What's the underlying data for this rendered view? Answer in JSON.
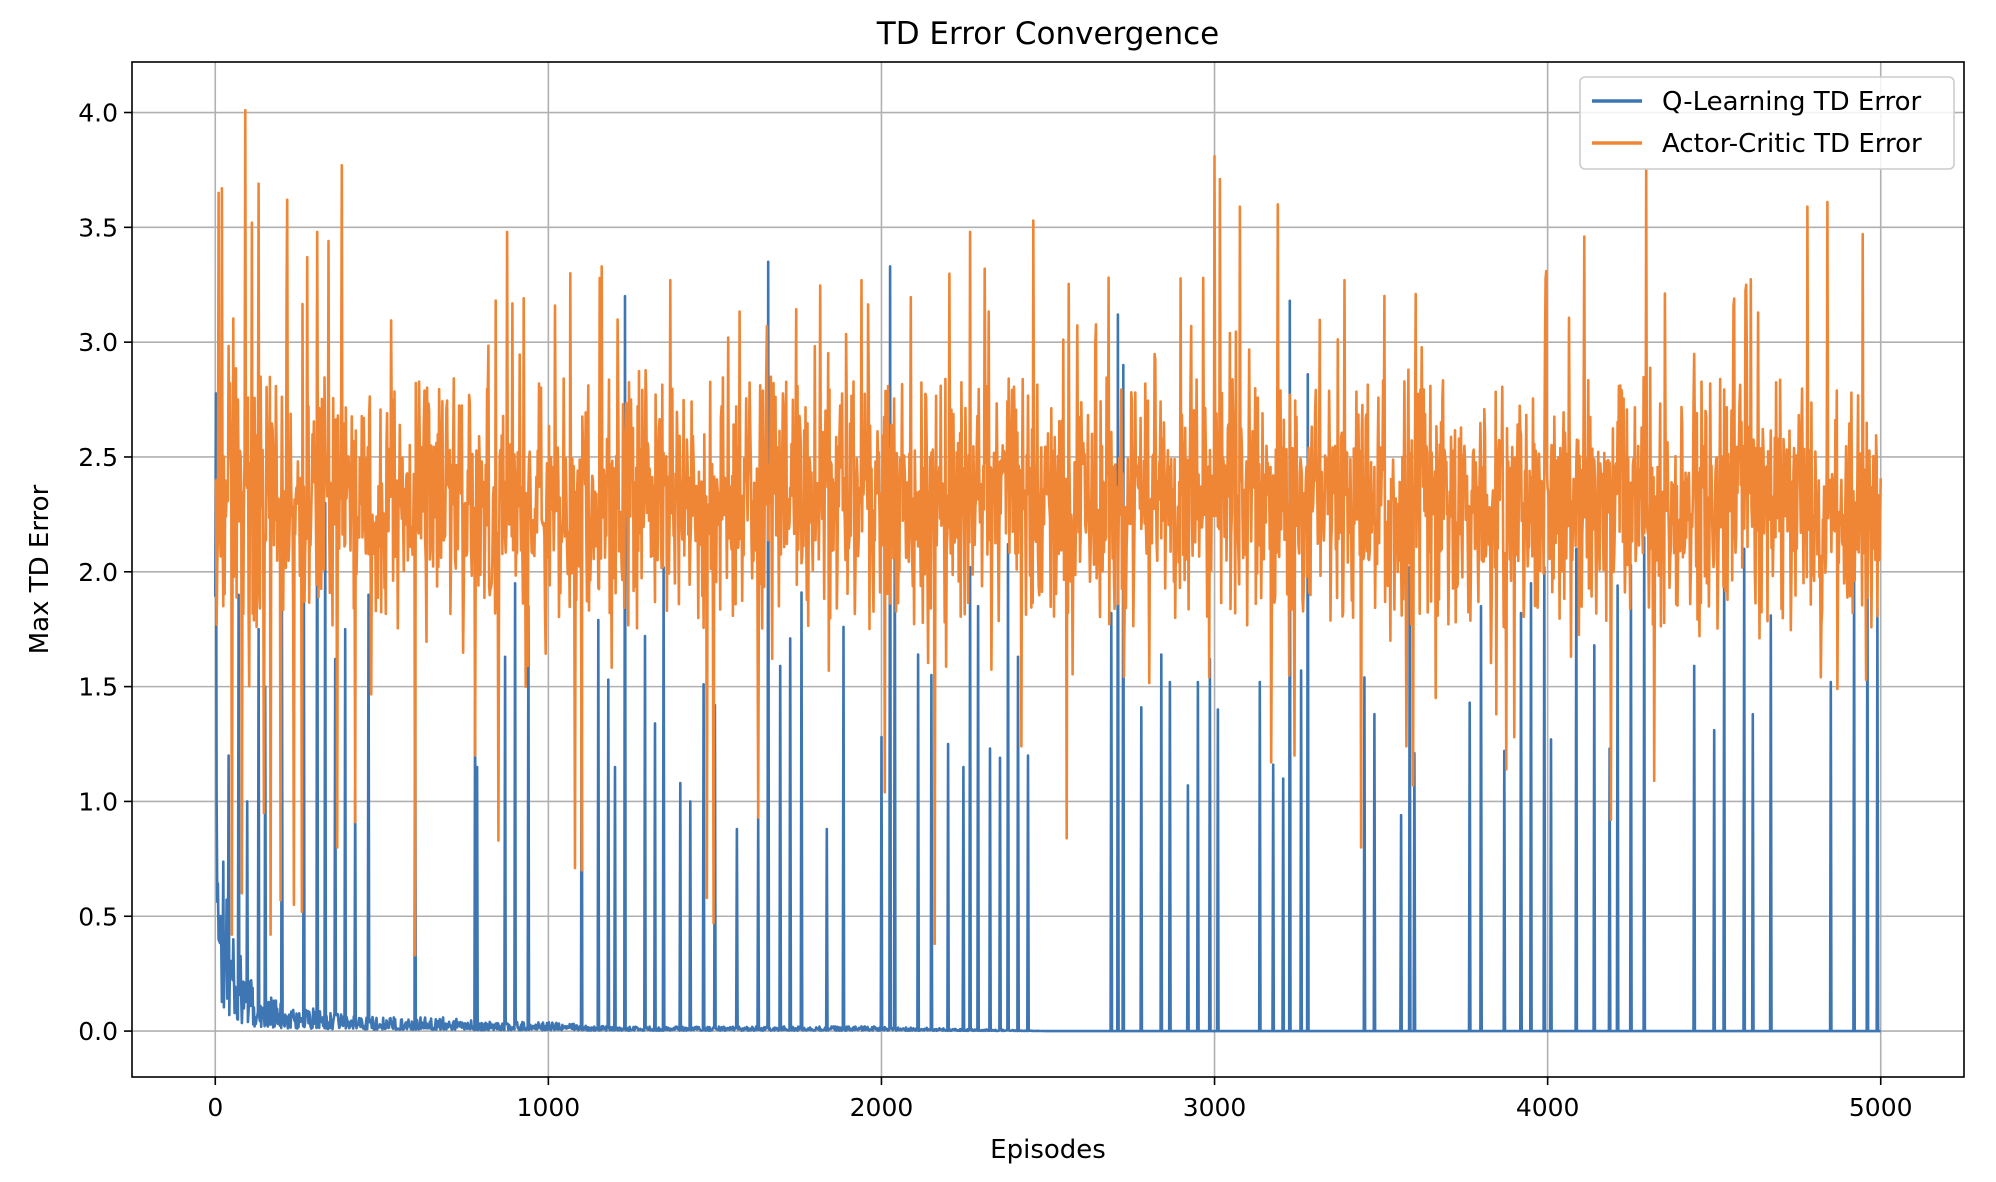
{
  "chart_data": {
    "type": "line",
    "title": "TD Error Convergence",
    "xlabel": "Episodes",
    "ylabel": "Max TD Error",
    "xlim": [
      -250,
      5250
    ],
    "ylim": [
      -0.2,
      4.22
    ],
    "xticks": [
      0,
      1000,
      2000,
      3000,
      4000,
      5000
    ],
    "xtick_labels": [
      "0",
      "1000",
      "2000",
      "3000",
      "4000",
      "5000"
    ],
    "yticks": [
      0.0,
      0.5,
      1.0,
      1.5,
      2.0,
      2.5,
      3.0,
      3.5,
      4.0
    ],
    "ytick_labels": [
      "0.0",
      "0.5",
      "1.0",
      "1.5",
      "2.0",
      "2.5",
      "3.0",
      "3.5",
      "4.0"
    ],
    "grid": true,
    "legend_position": "top-right",
    "series": [
      {
        "name": "Q-Learning TD Error",
        "color": "#3d76b3",
        "x": [
          0,
          5,
          10,
          20,
          30,
          50,
          80,
          120,
          160,
          200,
          250,
          300,
          350,
          400,
          500,
          600,
          700,
          800,
          1000,
          1200,
          1500,
          2000,
          2500,
          3000,
          3500,
          4000,
          4500,
          5000
        ],
        "values": [
          2.2,
          0.7,
          0.5,
          0.45,
          0.35,
          0.25,
          0.15,
          0.1,
          0.08,
          0.06,
          0.05,
          0.05,
          0.04,
          0.04,
          0.03,
          0.03,
          0.03,
          0.02,
          0.02,
          0.01,
          0.01,
          0.01,
          0.0,
          0.0,
          0.0,
          0.0,
          0.0,
          0.0
        ],
        "spikes": [
          [
            40,
            1.2
          ],
          [
            70,
            1.9
          ],
          [
            95,
            1.0
          ],
          [
            130,
            1.75
          ],
          [
            150,
            1.5
          ],
          [
            200,
            1.9
          ],
          [
            265,
            1.9
          ],
          [
            305,
            3.17
          ],
          [
            330,
            2.3
          ],
          [
            360,
            1.62
          ],
          [
            390,
            1.75
          ],
          [
            420,
            1.06
          ],
          [
            460,
            1.9
          ],
          [
            600,
            1.9
          ],
          [
            780,
            1.44
          ],
          [
            785,
            1.15
          ],
          [
            870,
            1.63
          ],
          [
            900,
            1.95
          ],
          [
            940,
            1.85
          ],
          [
            1100,
            1.82
          ],
          [
            1150,
            1.79
          ],
          [
            1180,
            1.53
          ],
          [
            1200,
            1.15
          ],
          [
            1230,
            3.2
          ],
          [
            1290,
            1.72
          ],
          [
            1320,
            1.34
          ],
          [
            1345,
            2.02
          ],
          [
            1395,
            1.08
          ],
          [
            1425,
            1.0
          ],
          [
            1465,
            1.51
          ],
          [
            1500,
            1.42
          ],
          [
            1565,
            0.88
          ],
          [
            1630,
            0.94
          ],
          [
            1660,
            3.35
          ],
          [
            1695,
            1.59
          ],
          [
            1725,
            1.71
          ],
          [
            1760,
            1.91
          ],
          [
            1835,
            0.88
          ],
          [
            1885,
            1.76
          ],
          [
            2000,
            1.28
          ],
          [
            2025,
            3.33
          ],
          [
            2040,
            2.45
          ],
          [
            2110,
            1.64
          ],
          [
            2150,
            1.55
          ],
          [
            2200,
            1.25
          ],
          [
            2245,
            1.15
          ],
          [
            2265,
            2.02
          ],
          [
            2290,
            1.85
          ],
          [
            2325,
            1.23
          ],
          [
            2355,
            1.19
          ],
          [
            2380,
            2.12
          ],
          [
            2410,
            1.63
          ],
          [
            2440,
            1.2
          ],
          [
            2690,
            1.82
          ],
          [
            2710,
            3.12
          ],
          [
            2725,
            2.9
          ],
          [
            2780,
            1.41
          ],
          [
            2840,
            1.64
          ],
          [
            2865,
            1.52
          ],
          [
            2920,
            1.07
          ],
          [
            2950,
            1.52
          ],
          [
            2985,
            1.62
          ],
          [
            3010,
            1.4
          ],
          [
            3135,
            1.52
          ],
          [
            3175,
            1.16
          ],
          [
            3205,
            1.1
          ],
          [
            3225,
            3.18
          ],
          [
            3260,
            1.57
          ],
          [
            3280,
            2.86
          ],
          [
            3450,
            1.54
          ],
          [
            3480,
            1.38
          ],
          [
            3560,
            0.94
          ],
          [
            3585,
            2.02
          ],
          [
            3600,
            1.21
          ],
          [
            3765,
            1.43
          ],
          [
            3800,
            1.85
          ],
          [
            3870,
            1.22
          ],
          [
            3920,
            1.82
          ],
          [
            3950,
            1.95
          ],
          [
            3990,
            2.02
          ],
          [
            4010,
            1.27
          ],
          [
            4085,
            2.1
          ],
          [
            4140,
            1.68
          ],
          [
            4185,
            1.23
          ],
          [
            4210,
            1.94
          ],
          [
            4250,
            2.03
          ],
          [
            4290,
            2.15
          ],
          [
            4440,
            1.59
          ],
          [
            4500,
            1.31
          ],
          [
            4530,
            2.02
          ],
          [
            4590,
            2.1
          ],
          [
            4615,
            1.38
          ],
          [
            4670,
            1.81
          ],
          [
            4850,
            1.52
          ],
          [
            4920,
            2.02
          ],
          [
            4960,
            2.13
          ],
          [
            4990,
            1.84
          ]
        ]
      },
      {
        "name": "Actor-Critic TD Error",
        "color": "#ef8636",
        "center": 2.3,
        "band": [
          1.75,
          2.85
        ],
        "extremes": [
          [
            10,
            3.65
          ],
          [
            20,
            3.67
          ],
          [
            50,
            0.42
          ],
          [
            80,
            0.6
          ],
          [
            90,
            4.01
          ],
          [
            110,
            3.52
          ],
          [
            130,
            3.69
          ],
          [
            145,
            0.95
          ],
          [
            165,
            0.42
          ],
          [
            195,
            0.57
          ],
          [
            215,
            3.62
          ],
          [
            235,
            0.55
          ],
          [
            260,
            0.52
          ],
          [
            275,
            3.37
          ],
          [
            305,
            3.48
          ],
          [
            340,
            3.44
          ],
          [
            365,
            0.8
          ],
          [
            380,
            3.77
          ],
          [
            420,
            0.91
          ],
          [
            600,
            0.33
          ],
          [
            780,
            1.2
          ],
          [
            850,
            0.83
          ],
          [
            875,
            3.48
          ],
          [
            1065,
            3.3
          ],
          [
            1080,
            0.71
          ],
          [
            1100,
            0.7
          ],
          [
            1160,
            3.33
          ],
          [
            1365,
            3.27
          ],
          [
            1475,
            0.58
          ],
          [
            1495,
            0.47
          ],
          [
            1540,
            3.02
          ],
          [
            1630,
            0.93
          ],
          [
            1655,
            3.07
          ],
          [
            1940,
            3.27
          ],
          [
            2010,
            1.04
          ],
          [
            2160,
            0.38
          ],
          [
            2265,
            3.48
          ],
          [
            2310,
            3.32
          ],
          [
            2420,
            1.24
          ],
          [
            2455,
            3.53
          ],
          [
            2555,
            0.84
          ],
          [
            2895,
            1.93
          ],
          [
            2930,
            3.07
          ],
          [
            2965,
            3.28
          ],
          [
            3000,
            3.81
          ],
          [
            3015,
            3.71
          ],
          [
            3075,
            3.59
          ],
          [
            3170,
            1.17
          ],
          [
            3190,
            3.6
          ],
          [
            3240,
            1.2
          ],
          [
            3390,
            3.27
          ],
          [
            3440,
            0.8
          ],
          [
            3575,
            1.24
          ],
          [
            3595,
            1.07
          ],
          [
            3845,
            1.38
          ],
          [
            3875,
            1.14
          ],
          [
            3900,
            1.28
          ],
          [
            3995,
            3.31
          ],
          [
            4110,
            3.46
          ],
          [
            4190,
            0.92
          ],
          [
            4295,
            3.75
          ],
          [
            4320,
            1.09
          ],
          [
            4595,
            3.25
          ],
          [
            4780,
            3.59
          ],
          [
            4840,
            3.61
          ],
          [
            4870,
            1.49
          ],
          [
            4945,
            3.47
          ],
          [
            4955,
            1.53
          ]
        ]
      }
    ]
  }
}
